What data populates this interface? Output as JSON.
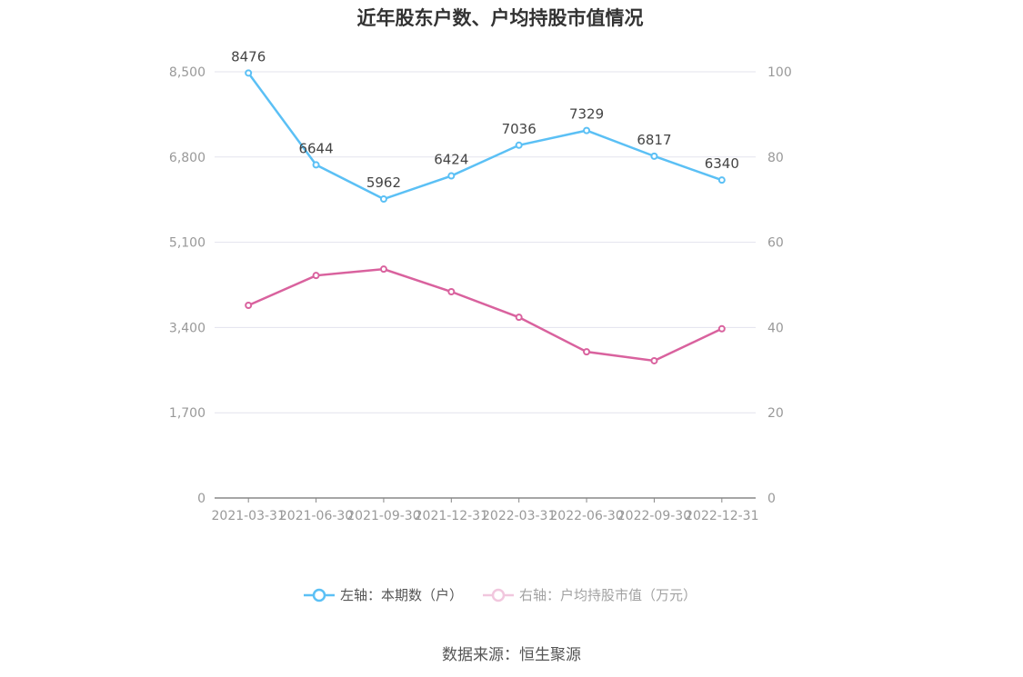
{
  "chart_data": {
    "type": "line",
    "title": "近年股东户数、户均持股市值情况",
    "categories": [
      "2021-03-31",
      "2021-06-30",
      "2021-09-30",
      "2021-12-31",
      "2022-03-31",
      "2022-06-30",
      "2022-09-30",
      "2022-12-31"
    ],
    "y_left": {
      "range": [
        0,
        8500
      ],
      "ticks": [
        "0",
        "1,700",
        "3,400",
        "5,100",
        "6,800",
        "8,500"
      ]
    },
    "y_right": {
      "range": [
        0,
        100
      ],
      "ticks": [
        "0",
        "20",
        "40",
        "60",
        "80",
        "100"
      ]
    },
    "grid": true,
    "legend_placement": "bottom",
    "series": [
      {
        "name": "左轴：本期数（户）",
        "axis": "left",
        "color": "#5bc0f5",
        "values": [
          8476,
          6644,
          5962,
          6424,
          7036,
          7329,
          6817,
          6340
        ],
        "labels": [
          "8476",
          "6644",
          "5962",
          "6424",
          "7036",
          "7329",
          "6817",
          "6340"
        ]
      },
      {
        "name": "右轴：户均持股市值（万元）",
        "axis": "right",
        "color": "#d9629e",
        "values": [
          45.2,
          52.2,
          53.7,
          48.4,
          42.4,
          34.3,
          32.2,
          39.7
        ]
      }
    ]
  },
  "source": "数据来源：恒生聚源"
}
